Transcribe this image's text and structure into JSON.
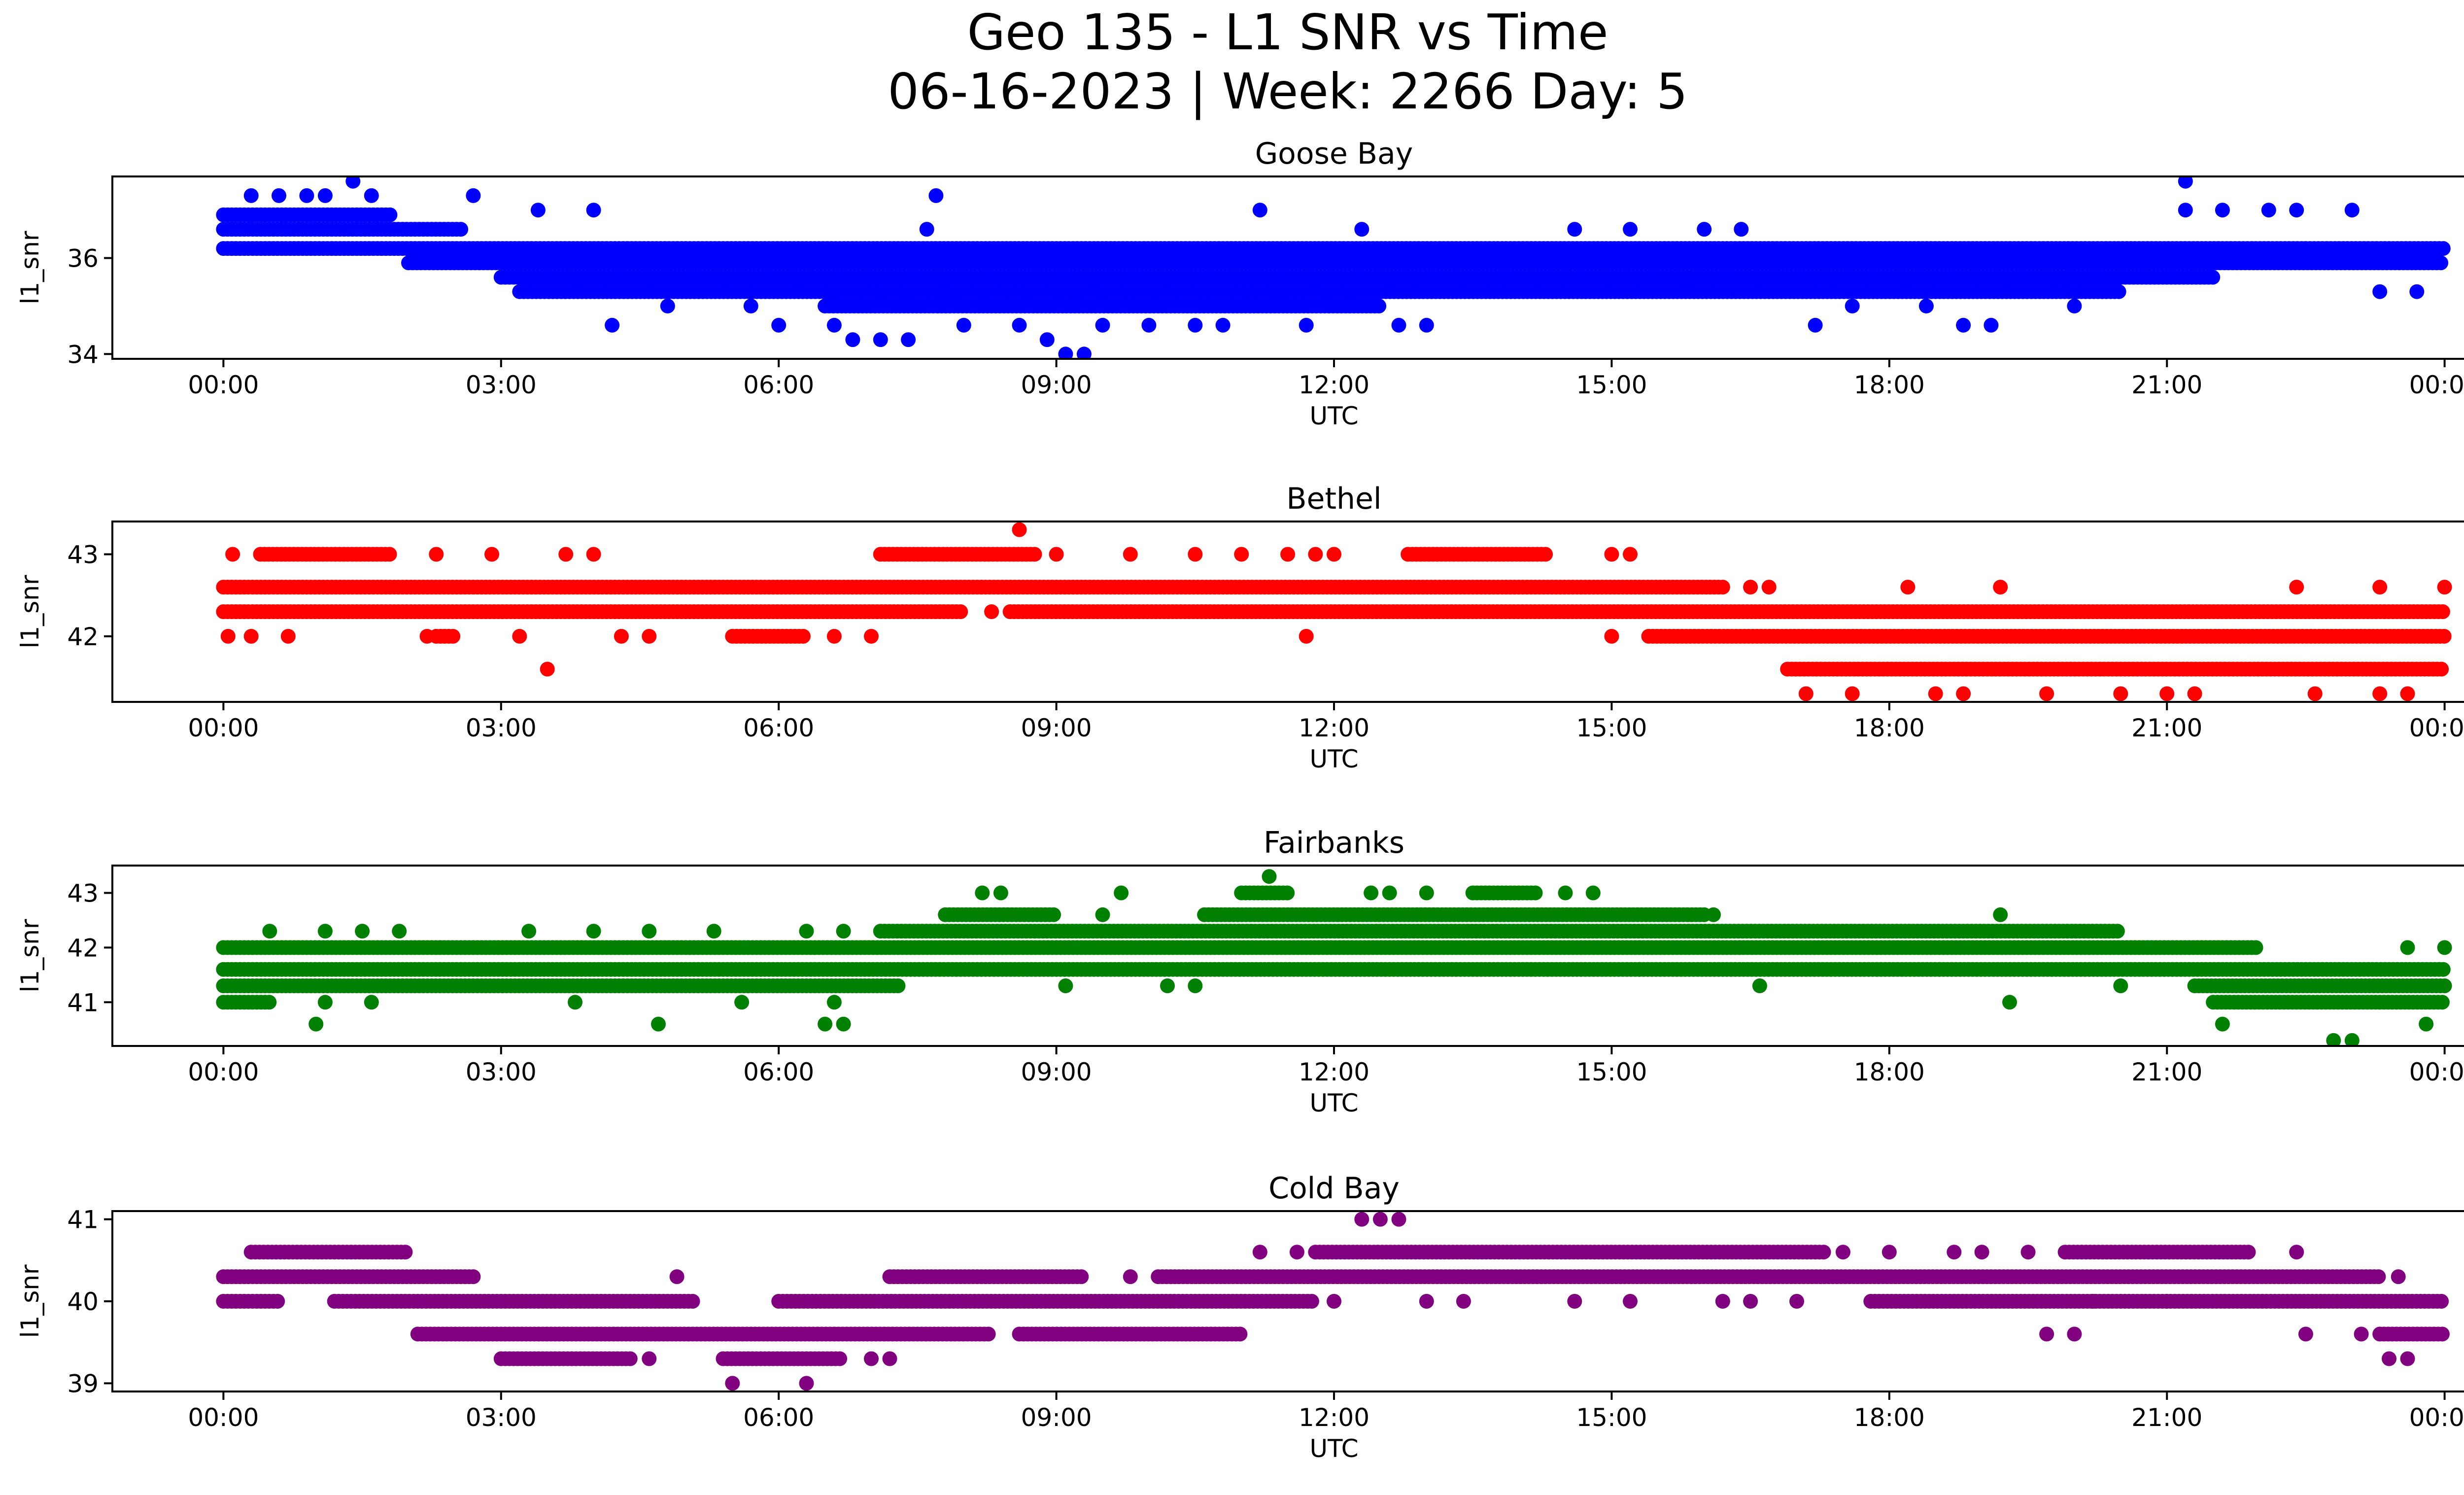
{
  "title_line1": "Geo 135 - L1 SNR vs Time",
  "title_line2": "06-16-2023 | Week: 2266 Day: 5",
  "chart_data": [
    {
      "type": "scatter",
      "title": "Goose Bay",
      "xlabel": "UTC",
      "ylabel": "l1_snr",
      "color": "#0000ff",
      "x_ticks": [
        "00:00",
        "03:00",
        "06:00",
        "09:00",
        "12:00",
        "15:00",
        "18:00",
        "21:00",
        "00:00"
      ],
      "y_ticks": [
        34,
        36
      ],
      "ylim": [
        33.9,
        37.7
      ],
      "xlim_hours": [
        -1.2,
        25.2
      ],
      "snr_levels": [
        34.0,
        34.3,
        34.6,
        35.0,
        35.3,
        35.6,
        35.9,
        36.2,
        36.6,
        37.0,
        37.3,
        37.6
      ],
      "band_segments": [
        {
          "level": 36.9,
          "from": 0.0,
          "to": 1.8
        },
        {
          "level": 36.6,
          "from": 0.0,
          "to": 2.6
        },
        {
          "level": 36.2,
          "from": 0.0,
          "to": 24.0
        },
        {
          "level": 35.9,
          "from": 2.0,
          "to": 24.0
        },
        {
          "level": 35.6,
          "from": 3.0,
          "to": 21.5
        },
        {
          "level": 35.3,
          "from": 3.2,
          "to": 20.5
        },
        {
          "level": 35.0,
          "from": 6.5,
          "to": 12.5
        }
      ],
      "scatter_points": [
        [
          0.3,
          37.3
        ],
        [
          0.6,
          37.3
        ],
        [
          0.9,
          37.3
        ],
        [
          1.1,
          37.3
        ],
        [
          1.4,
          37.6
        ],
        [
          1.6,
          37.3
        ],
        [
          2.7,
          37.3
        ],
        [
          3.4,
          37.0
        ],
        [
          4.0,
          37.0
        ],
        [
          4.2,
          34.6
        ],
        [
          4.8,
          35.0
        ],
        [
          5.7,
          35.0
        ],
        [
          6.0,
          34.6
        ],
        [
          6.6,
          34.6
        ],
        [
          6.8,
          34.3
        ],
        [
          7.1,
          34.3
        ],
        [
          7.4,
          34.3
        ],
        [
          7.7,
          37.3
        ],
        [
          7.6,
          36.6
        ],
        [
          8.0,
          34.6
        ],
        [
          8.6,
          34.6
        ],
        [
          8.9,
          34.3
        ],
        [
          9.1,
          34.0
        ],
        [
          9.3,
          34.0
        ],
        [
          9.5,
          34.6
        ],
        [
          10.0,
          34.6
        ],
        [
          10.5,
          34.6
        ],
        [
          10.8,
          34.6
        ],
        [
          11.2,
          37.0
        ],
        [
          11.7,
          34.6
        ],
        [
          12.3,
          36.6
        ],
        [
          12.7,
          34.6
        ],
        [
          13.0,
          34.6
        ],
        [
          14.6,
          36.6
        ],
        [
          15.2,
          36.6
        ],
        [
          16.0,
          36.6
        ],
        [
          16.4,
          36.6
        ],
        [
          17.2,
          34.6
        ],
        [
          17.6,
          35.0
        ],
        [
          18.4,
          35.0
        ],
        [
          18.8,
          34.6
        ],
        [
          19.1,
          34.6
        ],
        [
          20.0,
          35.0
        ],
        [
          21.2,
          37.6
        ],
        [
          21.2,
          37.0
        ],
        [
          21.6,
          37.0
        ],
        [
          22.1,
          37.0
        ],
        [
          22.4,
          37.0
        ],
        [
          23.0,
          37.0
        ],
        [
          23.3,
          35.3
        ],
        [
          23.7,
          35.3
        ]
      ]
    },
    {
      "type": "scatter",
      "title": "Bethel",
      "xlabel": "UTC",
      "ylabel": "l1_snr",
      "color": "#ff0000",
      "x_ticks": [
        "00:00",
        "03:00",
        "06:00",
        "09:00",
        "12:00",
        "15:00",
        "18:00",
        "21:00",
        "00:00"
      ],
      "y_ticks": [
        42,
        43
      ],
      "ylim": [
        41.2,
        43.4
      ],
      "xlim_hours": [
        -1.2,
        25.2
      ],
      "snr_levels": [
        41.3,
        41.6,
        42.0,
        42.3,
        42.6,
        43.0,
        43.3
      ],
      "band_segments": [
        {
          "level": 43.0,
          "from": 0.4,
          "to": 1.8
        },
        {
          "level": 43.0,
          "from": 7.1,
          "to": 8.8
        },
        {
          "level": 43.0,
          "from": 12.8,
          "to": 14.3
        },
        {
          "level": 42.6,
          "from": 0.0,
          "to": 16.2
        },
        {
          "level": 42.3,
          "from": 0.0,
          "to": 8.0
        },
        {
          "level": 42.3,
          "from": 8.5,
          "to": 24.0
        },
        {
          "level": 42.0,
          "from": 15.4,
          "to": 24.0
        },
        {
          "level": 41.6,
          "from": 16.9,
          "to": 24.0
        },
        {
          "level": 42.0,
          "from": 2.3,
          "to": 2.5
        },
        {
          "level": 42.0,
          "from": 5.5,
          "to": 6.3
        }
      ],
      "scatter_points": [
        [
          0.1,
          43.0
        ],
        [
          0.05,
          42.0
        ],
        [
          0.3,
          42.0
        ],
        [
          0.7,
          42.0
        ],
        [
          2.2,
          42.0
        ],
        [
          2.3,
          43.0
        ],
        [
          2.9,
          43.0
        ],
        [
          3.2,
          42.0
        ],
        [
          3.5,
          41.6
        ],
        [
          3.7,
          43.0
        ],
        [
          4.0,
          43.0
        ],
        [
          4.3,
          42.0
        ],
        [
          4.6,
          42.0
        ],
        [
          6.6,
          42.0
        ],
        [
          7.0,
          42.0
        ],
        [
          8.3,
          42.3
        ],
        [
          8.6,
          43.3
        ],
        [
          9.0,
          43.0
        ],
        [
          9.8,
          43.0
        ],
        [
          10.5,
          43.0
        ],
        [
          11.0,
          43.0
        ],
        [
          11.5,
          43.0
        ],
        [
          11.8,
          43.0
        ],
        [
          11.7,
          42.0
        ],
        [
          12.0,
          43.0
        ],
        [
          15.0,
          43.0
        ],
        [
          15.2,
          43.0
        ],
        [
          15.0,
          42.0
        ],
        [
          16.5,
          42.6
        ],
        [
          16.7,
          42.6
        ],
        [
          17.1,
          41.3
        ],
        [
          17.6,
          41.3
        ],
        [
          18.2,
          42.6
        ],
        [
          18.5,
          41.3
        ],
        [
          18.8,
          41.3
        ],
        [
          19.2,
          42.6
        ],
        [
          19.7,
          41.3
        ],
        [
          20.5,
          41.3
        ],
        [
          21.0,
          41.3
        ],
        [
          21.3,
          41.3
        ],
        [
          22.4,
          42.6
        ],
        [
          22.6,
          41.3
        ],
        [
          23.3,
          41.3
        ],
        [
          23.3,
          42.6
        ],
        [
          23.6,
          41.3
        ],
        [
          24.0,
          42.6
        ]
      ]
    },
    {
      "type": "scatter",
      "title": "Fairbanks",
      "xlabel": "UTC",
      "ylabel": "l1_snr",
      "color": "#008000",
      "x_ticks": [
        "00:00",
        "03:00",
        "06:00",
        "09:00",
        "12:00",
        "15:00",
        "18:00",
        "21:00",
        "00:00"
      ],
      "y_ticks": [
        41,
        42,
        43
      ],
      "ylim": [
        40.2,
        43.5
      ],
      "xlim_hours": [
        -1.2,
        25.2
      ],
      "snr_levels": [
        40.3,
        40.6,
        41.0,
        41.3,
        41.6,
        42.0,
        42.3,
        42.6,
        43.0,
        43.3
      ],
      "band_segments": [
        {
          "level": 42.0,
          "from": 0.0,
          "to": 22.0
        },
        {
          "level": 41.6,
          "from": 0.0,
          "to": 24.0
        },
        {
          "level": 41.3,
          "from": 0.0,
          "to": 7.3
        },
        {
          "level": 41.3,
          "from": 21.3,
          "to": 24.0
        },
        {
          "level": 41.0,
          "from": 0.0,
          "to": 0.5
        },
        {
          "level": 41.0,
          "from": 21.5,
          "to": 24.0
        },
        {
          "level": 42.3,
          "from": 7.1,
          "to": 20.5
        },
        {
          "level": 42.6,
          "from": 7.8,
          "to": 9.0
        },
        {
          "level": 42.6,
          "from": 10.6,
          "to": 16.0
        },
        {
          "level": 43.0,
          "from": 11.0,
          "to": 11.5
        },
        {
          "level": 43.0,
          "from": 13.5,
          "to": 14.2
        }
      ],
      "scatter_points": [
        [
          0.5,
          42.3
        ],
        [
          1.1,
          42.3
        ],
        [
          1.5,
          42.3
        ],
        [
          1.9,
          42.3
        ],
        [
          3.3,
          42.3
        ],
        [
          4.0,
          42.3
        ],
        [
          4.6,
          42.3
        ],
        [
          5.3,
          42.3
        ],
        [
          6.3,
          42.3
        ],
        [
          6.7,
          42.3
        ],
        [
          1.0,
          40.6
        ],
        [
          1.1,
          41.0
        ],
        [
          1.6,
          41.0
        ],
        [
          3.8,
          41.0
        ],
        [
          4.7,
          40.6
        ],
        [
          5.6,
          41.0
        ],
        [
          6.5,
          40.6
        ],
        [
          6.7,
          40.6
        ],
        [
          6.6,
          41.0
        ],
        [
          8.2,
          43.0
        ],
        [
          8.4,
          43.0
        ],
        [
          9.1,
          41.3
        ],
        [
          9.5,
          42.6
        ],
        [
          9.7,
          43.0
        ],
        [
          10.2,
          41.3
        ],
        [
          10.5,
          41.3
        ],
        [
          11.3,
          43.3
        ],
        [
          12.6,
          43.0
        ],
        [
          12.4,
          43.0
        ],
        [
          13.0,
          43.0
        ],
        [
          14.5,
          43.0
        ],
        [
          14.8,
          43.0
        ],
        [
          15.3,
          41.6
        ],
        [
          16.1,
          42.6
        ],
        [
          16.6,
          41.3
        ],
        [
          19.2,
          42.6
        ],
        [
          19.3,
          41.0
        ],
        [
          20.5,
          41.3
        ],
        [
          21.6,
          40.6
        ],
        [
          22.8,
          40.3
        ],
        [
          23.0,
          40.3
        ],
        [
          23.6,
          42.0
        ],
        [
          23.8,
          40.6
        ],
        [
          24.0,
          42.0
        ]
      ]
    },
    {
      "type": "scatter",
      "title": "Cold Bay",
      "xlabel": "UTC",
      "ylabel": "l1_snr",
      "color": "#800080",
      "x_ticks": [
        "00:00",
        "03:00",
        "06:00",
        "09:00",
        "12:00",
        "15:00",
        "18:00",
        "21:00",
        "00:00"
      ],
      "y_ticks": [
        39,
        40,
        41
      ],
      "ylim": [
        38.9,
        41.1
      ],
      "xlim_hours": [
        -1.2,
        25.2
      ],
      "snr_levels": [
        39.0,
        39.3,
        39.6,
        40.0,
        40.3,
        40.6,
        41.0
      ],
      "band_segments": [
        {
          "level": 40.3,
          "from": 0.0,
          "to": 2.7
        },
        {
          "level": 40.0,
          "from": 0.0,
          "to": 0.6
        },
        {
          "level": 40.0,
          "from": 1.2,
          "to": 5.1
        },
        {
          "level": 40.0,
          "from": 6.0,
          "to": 11.8
        },
        {
          "level": 40.0,
          "from": 17.8,
          "to": 24.0
        },
        {
          "level": 40.6,
          "from": 0.3,
          "to": 2.0
        },
        {
          "level": 39.6,
          "from": 2.1,
          "to": 8.3
        },
        {
          "level": 39.6,
          "from": 8.6,
          "to": 11.0
        },
        {
          "level": 39.6,
          "from": 23.3,
          "to": 24.0
        },
        {
          "level": 39.3,
          "from": 3.0,
          "to": 4.4
        },
        {
          "level": 39.3,
          "from": 5.4,
          "to": 6.7
        },
        {
          "level": 40.3,
          "from": 7.2,
          "to": 9.3
        },
        {
          "level": 40.3,
          "from": 10.1,
          "to": 23.3
        },
        {
          "level": 40.6,
          "from": 11.8,
          "to": 17.3
        },
        {
          "level": 40.6,
          "from": 19.9,
          "to": 21.9
        }
      ],
      "scatter_points": [
        [
          4.9,
          40.3
        ],
        [
          4.6,
          39.3
        ],
        [
          5.5,
          39.0
        ],
        [
          6.3,
          39.0
        ],
        [
          7.0,
          39.3
        ],
        [
          7.2,
          39.3
        ],
        [
          9.8,
          40.3
        ],
        [
          11.2,
          40.6
        ],
        [
          11.6,
          40.6
        ],
        [
          12.0,
          40.0
        ],
        [
          12.3,
          41.0
        ],
        [
          12.5,
          41.0
        ],
        [
          12.7,
          41.0
        ],
        [
          13.0,
          40.0
        ],
        [
          13.4,
          40.0
        ],
        [
          14.6,
          40.0
        ],
        [
          15.2,
          40.0
        ],
        [
          16.2,
          40.0
        ],
        [
          16.5,
          40.0
        ],
        [
          17.0,
          40.0
        ],
        [
          17.5,
          40.6
        ],
        [
          18.0,
          40.6
        ],
        [
          18.7,
          40.6
        ],
        [
          19.0,
          40.6
        ],
        [
          19.5,
          40.6
        ],
        [
          19.7,
          39.6
        ],
        [
          20.0,
          39.6
        ],
        [
          20.2,
          40.0
        ],
        [
          21.0,
          40.0
        ],
        [
          22.4,
          40.6
        ],
        [
          22.5,
          39.6
        ],
        [
          23.1,
          39.6
        ],
        [
          23.4,
          39.3
        ],
        [
          23.6,
          39.3
        ],
        [
          23.5,
          40.3
        ]
      ]
    }
  ]
}
